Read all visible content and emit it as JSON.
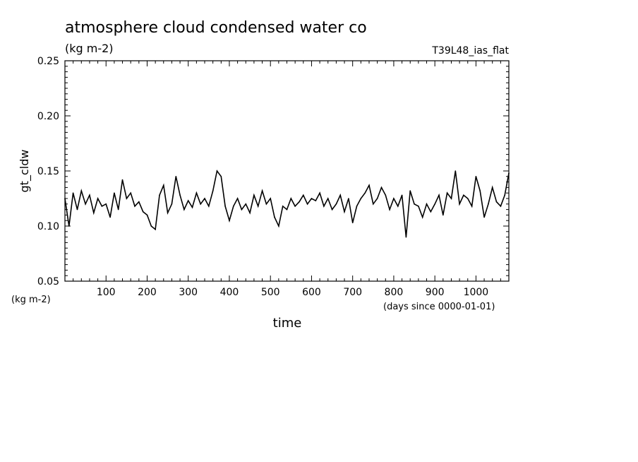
{
  "chart_data": {
    "type": "line",
    "title": "atmosphere cloud condensed water co",
    "subtitle": "(kg m-2)",
    "experiment": "T39L48_ias_flat",
    "ylabel": "gt_cldw",
    "xlabel": "time",
    "y_units": "(kg m-2)",
    "x_units": "(days since 0000-01-01)",
    "xlim": [
      0,
      1080
    ],
    "ylim": [
      0.05,
      0.25
    ],
    "x_ticks": [
      100,
      200,
      300,
      400,
      500,
      600,
      700,
      800,
      900,
      1000
    ],
    "x_tick_labels": [
      "100",
      "200",
      "300",
      "400",
      "500",
      "600",
      "700",
      "800",
      "900",
      "1000"
    ],
    "y_ticks": [
      0.05,
      0.1,
      0.15,
      0.2,
      0.25
    ],
    "y_tick_labels": [
      "0.05",
      "0.10",
      "0.15",
      "0.20",
      "0.25"
    ],
    "grid": false,
    "series": [
      {
        "x": [
          0,
          10,
          20,
          30,
          40,
          50,
          60,
          70,
          80,
          90,
          100,
          110,
          120,
          130,
          140,
          150,
          160,
          170,
          180,
          190,
          200,
          210,
          220,
          230,
          240,
          250,
          260,
          270,
          280,
          290,
          300,
          310,
          320,
          330,
          340,
          350,
          360,
          370,
          380,
          390,
          400,
          410,
          420,
          430,
          440,
          450,
          460,
          470,
          480,
          490,
          500,
          510,
          520,
          530,
          540,
          550,
          560,
          570,
          580,
          590,
          600,
          610,
          620,
          630,
          640,
          650,
          660,
          670,
          680,
          690,
          700,
          710,
          720,
          730,
          740,
          750,
          760,
          770,
          780,
          790,
          800,
          810,
          820,
          830,
          840,
          850,
          860,
          870,
          880,
          890,
          900,
          910,
          920,
          930,
          940,
          950,
          960,
          970,
          980,
          990,
          1000,
          1010,
          1020,
          1030,
          1040,
          1050,
          1060,
          1070,
          1080
        ],
        "y": [
          0.125,
          0.1,
          0.13,
          0.115,
          0.132,
          0.12,
          0.128,
          0.112,
          0.125,
          0.118,
          0.12,
          0.108,
          0.13,
          0.115,
          0.142,
          0.125,
          0.13,
          0.118,
          0.122,
          0.113,
          0.11,
          0.1,
          0.097,
          0.128,
          0.137,
          0.112,
          0.12,
          0.145,
          0.128,
          0.115,
          0.123,
          0.117,
          0.13,
          0.12,
          0.125,
          0.118,
          0.132,
          0.15,
          0.145,
          0.118,
          0.105,
          0.118,
          0.125,
          0.115,
          0.12,
          0.112,
          0.128,
          0.118,
          0.132,
          0.12,
          0.125,
          0.108,
          0.1,
          0.118,
          0.115,
          0.125,
          0.118,
          0.122,
          0.128,
          0.12,
          0.125,
          0.123,
          0.13,
          0.118,
          0.125,
          0.115,
          0.12,
          0.128,
          0.113,
          0.125,
          0.103,
          0.118,
          0.125,
          0.13,
          0.137,
          0.12,
          0.125,
          0.135,
          0.128,
          0.115,
          0.125,
          0.118,
          0.128,
          0.09,
          0.132,
          0.12,
          0.118,
          0.108,
          0.12,
          0.113,
          0.12,
          0.128,
          0.11,
          0.13,
          0.125,
          0.15,
          0.12,
          0.128,
          0.125,
          0.118,
          0.145,
          0.132,
          0.108,
          0.12,
          0.135,
          0.122,
          0.118,
          0.128,
          0.148
        ]
      }
    ]
  }
}
